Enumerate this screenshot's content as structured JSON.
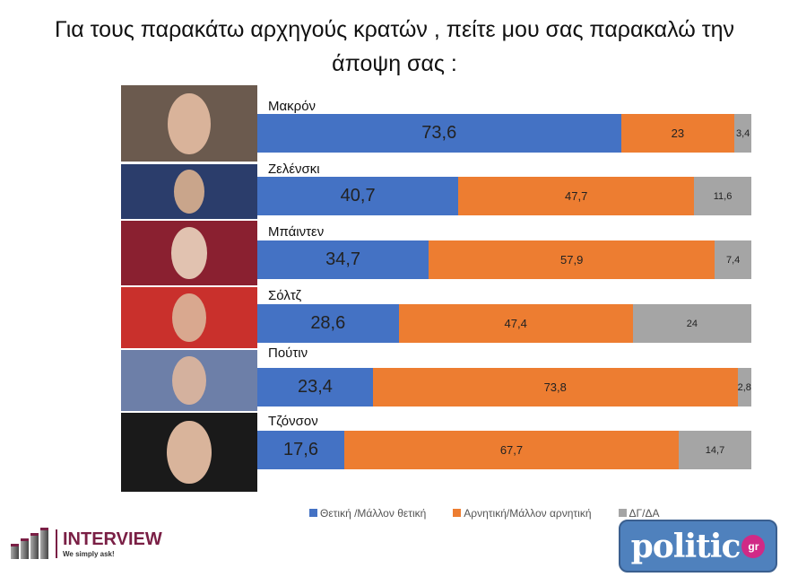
{
  "title_line1": "Για τους παρακάτω αρχηγούς κρατών , πείτε μου σας παρακαλώ την",
  "title_line2": "άποψη σας :",
  "colors": {
    "positive": "#4472c4",
    "negative": "#ed7d31",
    "dk": "#a5a5a5"
  },
  "chart_data": {
    "type": "bar",
    "orientation": "horizontal-stacked-100",
    "categories": [
      "Μακρόν",
      "Ζελένσκι",
      "Μπάιντεν",
      "Σόλτζ",
      "Πούτιν",
      "Τζόνσον"
    ],
    "series": [
      {
        "name": "Θετική /Μάλλον θετική",
        "values": [
          73.6,
          40.7,
          34.7,
          28.6,
          23.4,
          17.6
        ],
        "labels": [
          "73,6",
          "40,7",
          "34,7",
          "28,6",
          "23,4",
          "17,6"
        ]
      },
      {
        "name": "Αρνητική/Μάλλον αρνητική",
        "values": [
          23,
          47.7,
          57.9,
          47.4,
          73.8,
          67.7
        ],
        "labels": [
          "23",
          "47,7",
          "57,9",
          "47,4",
          "73,8",
          "67,7"
        ]
      },
      {
        "name": "ΔΓ/ΔΑ",
        "values": [
          3.4,
          11.6,
          7.4,
          24,
          2.8,
          14.7
        ],
        "labels": [
          "3,4",
          "11,6",
          "7,4",
          "24",
          "2,8",
          "14,7"
        ]
      }
    ],
    "legend": "bottom"
  },
  "logos": {
    "interview_name": "INTERVIEW",
    "interview_tagline": "We simply ask!",
    "politic": "politic",
    "politic_suffix": "gr"
  }
}
